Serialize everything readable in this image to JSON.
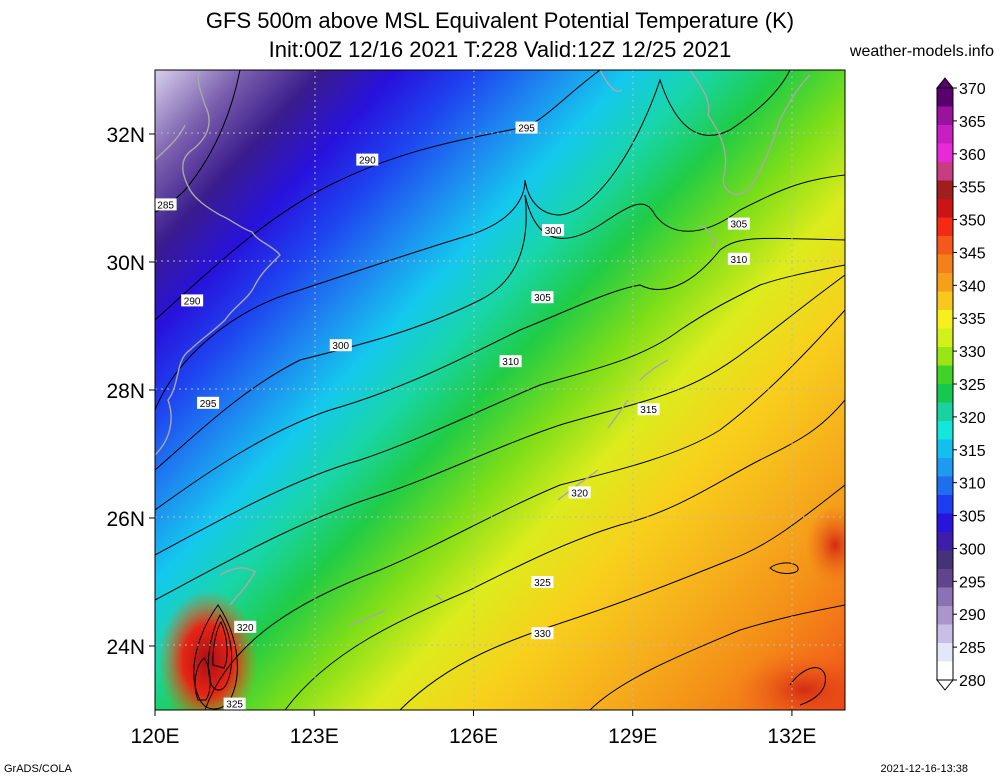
{
  "title_line1": "GFS 500m above MSL Equivalent Potential Temperature (K)",
  "title_line2": "Init:00Z 12/16 2021 T:228 Valid:12Z 12/25 2021",
  "site": "weather-models.info",
  "footer_left": "GrADS/COLA",
  "footer_right": "2021-12-16-13:38",
  "map": {
    "lon_range": [
      120,
      133
    ],
    "lat_range": [
      23,
      33
    ],
    "lat_ticks": [
      {
        "v": 32,
        "t": "32N"
      },
      {
        "v": 30,
        "t": "30N"
      },
      {
        "v": 28,
        "t": "28N"
      },
      {
        "v": 26,
        "t": "26N"
      },
      {
        "v": 24,
        "t": "24N"
      }
    ],
    "lon_ticks": [
      {
        "v": 120,
        "t": "120E"
      },
      {
        "v": 123,
        "t": "123E"
      },
      {
        "v": 126,
        "t": "126E"
      },
      {
        "v": 129,
        "t": "129E"
      },
      {
        "v": 132,
        "t": "132E"
      }
    ],
    "contour_labels": [
      {
        "text": "295",
        "lon": 127.0,
        "lat": 32.1
      },
      {
        "text": "290",
        "lon": 124.0,
        "lat": 31.6
      },
      {
        "text": "285",
        "lon": 120.2,
        "lat": 30.9
      },
      {
        "text": "300",
        "lon": 127.5,
        "lat": 30.5
      },
      {
        "text": "305",
        "lon": 131.0,
        "lat": 30.6
      },
      {
        "text": "310",
        "lon": 131.0,
        "lat": 30.05
      },
      {
        "text": "290",
        "lon": 120.7,
        "lat": 29.4
      },
      {
        "text": "305",
        "lon": 127.3,
        "lat": 29.45
      },
      {
        "text": "300",
        "lon": 123.5,
        "lat": 28.7
      },
      {
        "text": "310",
        "lon": 126.7,
        "lat": 28.45
      },
      {
        "text": "295",
        "lon": 121.0,
        "lat": 27.8
      },
      {
        "text": "315",
        "lon": 129.3,
        "lat": 27.7
      },
      {
        "text": "320",
        "lon": 128.0,
        "lat": 26.4
      },
      {
        "text": "325",
        "lon": 127.3,
        "lat": 25.0
      },
      {
        "text": "330",
        "lon": 127.3,
        "lat": 24.2
      },
      {
        "text": "320",
        "lon": 121.7,
        "lat": 24.3
      },
      {
        "text": "325",
        "lon": 121.5,
        "lat": 23.1
      }
    ]
  },
  "colorbar": {
    "labels": [
      "370",
      "365",
      "360",
      "355",
      "350",
      "345",
      "340",
      "335",
      "330",
      "325",
      "320",
      "315",
      "310",
      "305",
      "300",
      "295",
      "290",
      "285",
      "280"
    ],
    "colors": [
      "#5a006e",
      "#9a139e",
      "#c81fc4",
      "#e62ad8",
      "#c83c82",
      "#a11e1e",
      "#cc1414",
      "#f52a14",
      "#f35a19",
      "#f38019",
      "#f5a01c",
      "#f8c81c",
      "#f8f01c",
      "#d2f01c",
      "#9ae614",
      "#41d228",
      "#14c850",
      "#19d2a0",
      "#14e6dc",
      "#14beee",
      "#1e9bf0",
      "#1e6ef0",
      "#1e3cf0",
      "#2814dc",
      "#3c1eaa",
      "#463278",
      "#5f468c",
      "#8a73b4",
      "#aa96cd",
      "#c8bee6",
      "#e6e6fa",
      "#ffffff"
    ]
  }
}
